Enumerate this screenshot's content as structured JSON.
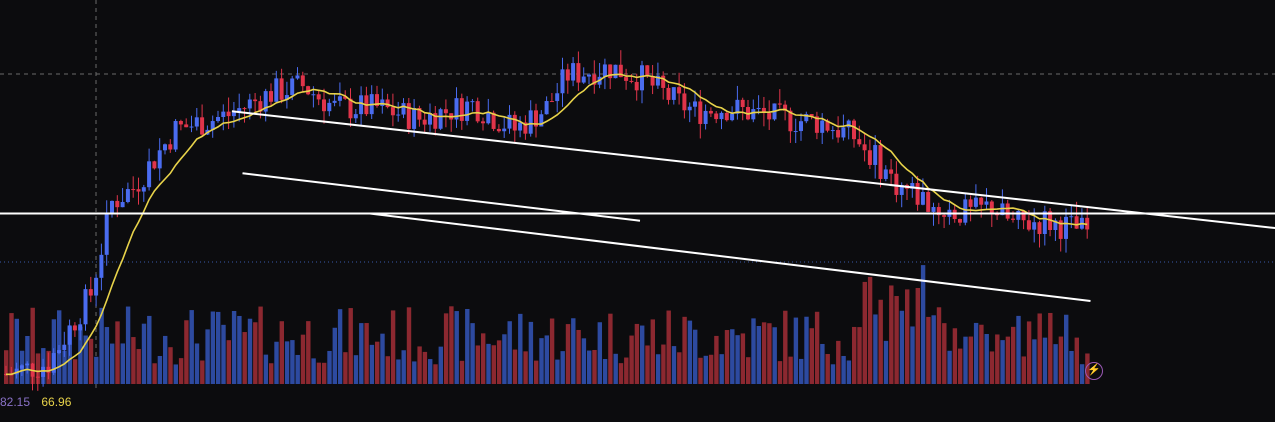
{
  "colors": {
    "background": "#0c0c0e",
    "up": "#3b5bdb",
    "up_candle": "#4a6cf0",
    "down": "#e0344a",
    "vol_up": "#2d4aa0",
    "vol_down": "#8c2830",
    "ma": "#e8d34a",
    "trendline": "#ffffff",
    "readout_a": "#8a72c8",
    "readout_b": "#e8d34a"
  },
  "readout": {
    "value_a": "82.15",
    "value_b": "66.96"
  },
  "lightning_icon": "lightning-bolt-icon",
  "chart_data": {
    "type": "candlestick",
    "grid": false,
    "price_range": [
      0,
      100
    ],
    "volume_range": [
      0,
      100
    ],
    "horizontal_support": 47,
    "trendlines": [
      {
        "from": [
          43,
          75
        ],
        "to": [
          246,
          42
        ]
      },
      {
        "from": [
          69,
          47
        ],
        "to": [
          205,
          23
        ]
      },
      {
        "from": [
          45,
          58
        ],
        "to": [
          120,
          45
        ]
      }
    ],
    "seed": 7
  }
}
